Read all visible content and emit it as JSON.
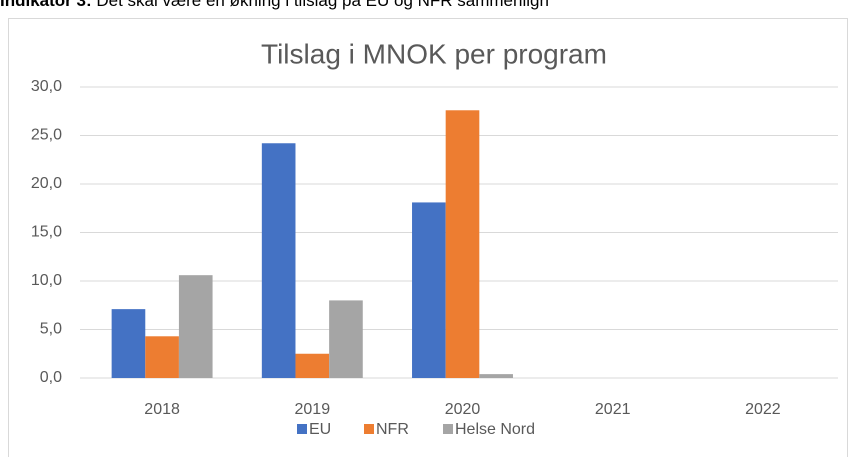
{
  "heading": {
    "label": "Indikator 3:",
    "text": "Det skal være en økning i tilslag på EU og NFR sammenlign"
  },
  "chart_data": {
    "type": "bar",
    "title": "Tilslag i MNOK per program",
    "categories": [
      "2018",
      "2019",
      "2020",
      "2021",
      "2022"
    ],
    "series": [
      {
        "name": "EU",
        "color": "#4472c4",
        "values": [
          7.1,
          24.2,
          18.1,
          0,
          0
        ]
      },
      {
        "name": "NFR",
        "color": "#ed7d31",
        "values": [
          4.3,
          2.5,
          27.6,
          0,
          0
        ]
      },
      {
        "name": "Helse Nord",
        "color": "#a5a5a5",
        "values": [
          10.6,
          8.0,
          0.4,
          0,
          0
        ]
      }
    ],
    "ylim": [
      0,
      30
    ],
    "yticks": [
      {
        "value": 0,
        "label": "0,0"
      },
      {
        "value": 5,
        "label": "5,0"
      },
      {
        "value": 10,
        "label": "10,0"
      },
      {
        "value": 15,
        "label": "15,0"
      },
      {
        "value": 20,
        "label": "20,0"
      },
      {
        "value": 25,
        "label": "25,0"
      },
      {
        "value": 30,
        "label": "30,0"
      }
    ],
    "grid": true,
    "legend": "bottom"
  }
}
